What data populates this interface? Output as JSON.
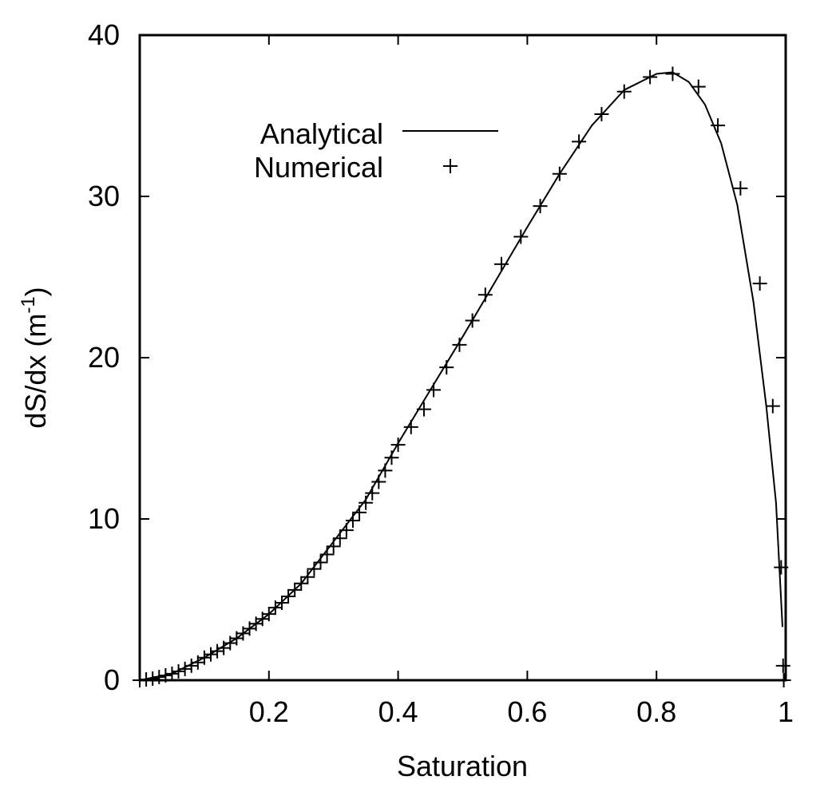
{
  "chart_data": {
    "type": "line",
    "xlabel": "Saturation",
    "ylabel": "dS/dx (m",
    "ylabel_superscript": "-1",
    "ylabel_close": ")",
    "xlim": [
      0,
      1
    ],
    "ylim": [
      0,
      40
    ],
    "xticks": [
      0.2,
      0.4,
      0.6,
      0.8,
      1
    ],
    "xtick_labels": [
      "0.2",
      "0.4",
      "0.6",
      "0.8",
      "1"
    ],
    "yticks": [
      0,
      10,
      20,
      30,
      40
    ],
    "ytick_labels": [
      "0",
      "10",
      "20",
      "30",
      "40"
    ],
    "grid": false,
    "legend_position": "top-left",
    "series": [
      {
        "name": "Analytical",
        "style": "line",
        "color": "#000000",
        "x": [
          0.0,
          0.05,
          0.1,
          0.15,
          0.2,
          0.25,
          0.3,
          0.35,
          0.4,
          0.45,
          0.5,
          0.55,
          0.6,
          0.65,
          0.7,
          0.75,
          0.8,
          0.825,
          0.85,
          0.875,
          0.9,
          0.925,
          0.95,
          0.97,
          0.985,
          0.995
        ],
        "y": [
          0.0,
          0.4,
          1.4,
          2.6,
          4.1,
          6.0,
          8.6,
          11.2,
          14.7,
          18.0,
          21.3,
          24.7,
          28.1,
          31.4,
          34.4,
          36.6,
          37.6,
          37.7,
          37.1,
          35.7,
          33.3,
          29.5,
          23.5,
          17.0,
          11.0,
          3.3
        ]
      },
      {
        "name": "Numerical",
        "style": "points",
        "marker": "plus",
        "color": "#000000",
        "x": [
          0.0,
          0.01,
          0.02,
          0.03,
          0.04,
          0.05,
          0.06,
          0.07,
          0.08,
          0.09,
          0.1,
          0.11,
          0.12,
          0.13,
          0.14,
          0.15,
          0.16,
          0.17,
          0.18,
          0.19,
          0.2,
          0.21,
          0.22,
          0.23,
          0.24,
          0.25,
          0.26,
          0.27,
          0.28,
          0.29,
          0.3,
          0.31,
          0.32,
          0.33,
          0.34,
          0.35,
          0.36,
          0.37,
          0.38,
          0.39,
          0.4,
          0.42,
          0.44,
          0.455,
          0.475,
          0.495,
          0.515,
          0.535,
          0.56,
          0.59,
          0.62,
          0.65,
          0.68,
          0.715,
          0.75,
          0.79,
          0.825,
          0.865,
          0.895,
          0.93,
          0.96,
          0.98,
          0.993,
          0.996,
          0.997
        ],
        "y": [
          0.0,
          0.05,
          0.1,
          0.2,
          0.3,
          0.4,
          0.55,
          0.7,
          0.9,
          1.1,
          1.4,
          1.6,
          1.8,
          2.0,
          2.3,
          2.6,
          2.9,
          3.2,
          3.5,
          3.8,
          4.1,
          4.5,
          4.8,
          5.2,
          5.6,
          6.0,
          6.4,
          6.9,
          7.3,
          7.8,
          8.3,
          8.8,
          9.3,
          9.9,
          10.4,
          11.0,
          11.6,
          12.3,
          13.0,
          13.8,
          14.6,
          15.7,
          16.8,
          18.0,
          19.4,
          20.8,
          22.3,
          23.9,
          25.8,
          27.5,
          29.4,
          31.4,
          33.4,
          35.1,
          36.5,
          37.4,
          37.6,
          36.8,
          34.4,
          30.5,
          24.6,
          17.0,
          7.0,
          0.9,
          0.0
        ]
      }
    ]
  }
}
